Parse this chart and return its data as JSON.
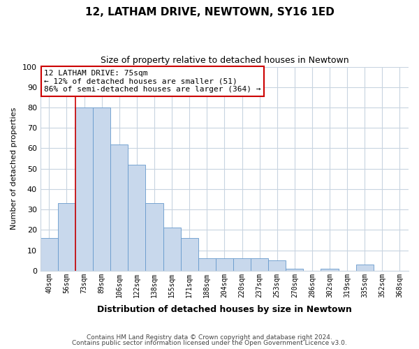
{
  "title": "12, LATHAM DRIVE, NEWTOWN, SY16 1ED",
  "subtitle": "Size of property relative to detached houses in Newtown",
  "xlabel": "Distribution of detached houses by size in Newtown",
  "ylabel": "Number of detached properties",
  "bar_labels": [
    "40sqm",
    "56sqm",
    "73sqm",
    "89sqm",
    "106sqm",
    "122sqm",
    "138sqm",
    "155sqm",
    "171sqm",
    "188sqm",
    "204sqm",
    "220sqm",
    "237sqm",
    "253sqm",
    "270sqm",
    "286sqm",
    "302sqm",
    "319sqm",
    "335sqm",
    "352sqm",
    "368sqm"
  ],
  "bar_values": [
    16,
    33,
    80,
    80,
    62,
    52,
    33,
    21,
    16,
    6,
    6,
    6,
    6,
    5,
    1,
    0,
    1,
    0,
    3,
    0,
    0
  ],
  "bar_color": "#c8d8ec",
  "bar_edge_color": "#6699cc",
  "marker_index": 2,
  "marker_line_color": "#cc0000",
  "annotation_line1": "12 LATHAM DRIVE: 75sqm",
  "annotation_line2": "← 12% of detached houses are smaller (51)",
  "annotation_line3": "86% of semi-detached houses are larger (364) →",
  "annotation_box_color": "#ffffff",
  "annotation_box_edge": "#cc0000",
  "ylim": [
    0,
    100
  ],
  "grid_color": "#c8d4e0",
  "footer1": "Contains HM Land Registry data © Crown copyright and database right 2024.",
  "footer2": "Contains public sector information licensed under the Open Government Licence v3.0.",
  "bg_color": "#ffffff"
}
